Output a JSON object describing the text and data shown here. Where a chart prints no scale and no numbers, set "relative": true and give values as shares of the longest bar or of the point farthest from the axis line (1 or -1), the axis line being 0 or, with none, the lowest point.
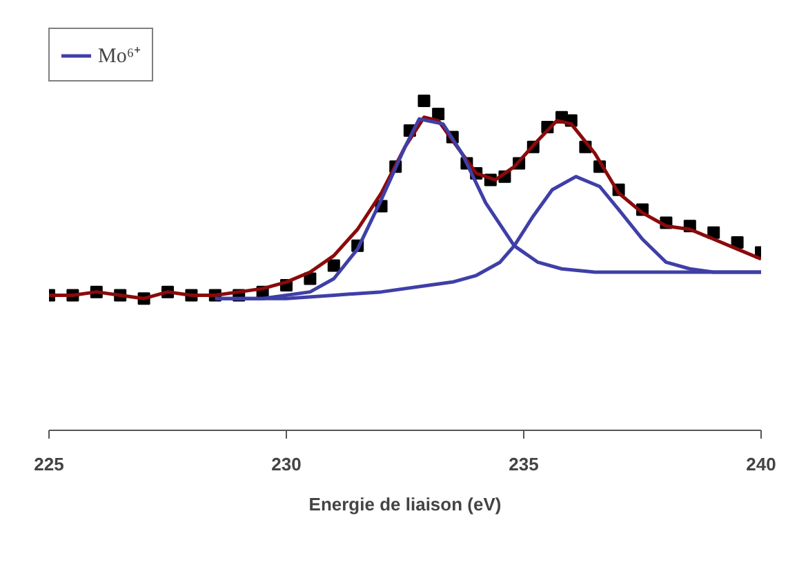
{
  "chart_data": {
    "type": "line",
    "xlabel": "Energie de liaison (eV)",
    "relative": true,
    "xlim": [
      225,
      240
    ],
    "xticks": [
      225,
      230,
      235,
      240
    ],
    "grid": false,
    "legend": "top left",
    "tick_labels": "x",
    "series": [
      {
        "type": "scatter",
        "marker": "square",
        "color": "#000000",
        "x": [
          225.0,
          225.5,
          226.0,
          226.5,
          227.0,
          227.5,
          228.0,
          228.5,
          229.0,
          229.5,
          230.0,
          230.5,
          231.0,
          231.5,
          232.0,
          232.3,
          232.6,
          232.9,
          233.2,
          233.5,
          233.8,
          234.0,
          234.3,
          234.6,
          234.9,
          235.2,
          235.5,
          235.8,
          236.0,
          236.3,
          236.6,
          237.0,
          237.5,
          238.0,
          238.5,
          239.0,
          239.5,
          240.0
        ],
        "values": [
          0.41,
          0.41,
          0.42,
          0.41,
          0.4,
          0.42,
          0.41,
          0.41,
          0.41,
          0.42,
          0.44,
          0.46,
          0.5,
          0.56,
          0.68,
          0.8,
          0.91,
          1.0,
          0.96,
          0.89,
          0.81,
          0.78,
          0.76,
          0.77,
          0.81,
          0.86,
          0.92,
          0.95,
          0.94,
          0.86,
          0.8,
          0.73,
          0.67,
          0.63,
          0.62,
          0.6,
          0.57,
          0.54
        ]
      },
      {
        "color": "#8b0a0a",
        "x": [
          225,
          225.5,
          226,
          226.5,
          227,
          227.5,
          228,
          228.5,
          229,
          229.5,
          230,
          230.5,
          231,
          231.5,
          232,
          232.5,
          232.9,
          233.2,
          233.6,
          234,
          234.4,
          234.8,
          235.3,
          235.7,
          236.0,
          236.5,
          237,
          237.5,
          238,
          238.5,
          239,
          239.5,
          240
        ],
        "values": [
          0.41,
          0.41,
          0.42,
          0.41,
          0.4,
          0.42,
          0.41,
          0.41,
          0.42,
          0.43,
          0.45,
          0.48,
          0.53,
          0.61,
          0.72,
          0.86,
          0.95,
          0.94,
          0.86,
          0.78,
          0.76,
          0.8,
          0.88,
          0.94,
          0.93,
          0.84,
          0.72,
          0.66,
          0.62,
          0.61,
          0.58,
          0.55,
          0.52
        ]
      },
      {
        "name": "Mo⁶⁺",
        "color": "#3f3fa8",
        "x": [
          228.5,
          229.5,
          230.5,
          231,
          231.5,
          232,
          232.5,
          232.8,
          233.3,
          233.7,
          234.2,
          234.8,
          235.3,
          235.8,
          236.5,
          238,
          240
        ],
        "values": [
          0.4,
          0.4,
          0.42,
          0.46,
          0.55,
          0.7,
          0.86,
          0.945,
          0.93,
          0.84,
          0.69,
          0.56,
          0.51,
          0.49,
          0.48,
          0.48,
          0.48
        ]
      },
      {
        "color": "#3f3fa8",
        "x": [
          228.5,
          230,
          231,
          232,
          233,
          233.5,
          234,
          234.5,
          234.8,
          235.2,
          235.6,
          236.1,
          236.6,
          237,
          237.5,
          238,
          238.5,
          239,
          240
        ],
        "values": [
          0.4,
          0.4,
          0.41,
          0.42,
          0.44,
          0.45,
          0.47,
          0.51,
          0.56,
          0.65,
          0.73,
          0.77,
          0.74,
          0.67,
          0.58,
          0.51,
          0.49,
          0.48,
          0.48
        ]
      }
    ]
  }
}
